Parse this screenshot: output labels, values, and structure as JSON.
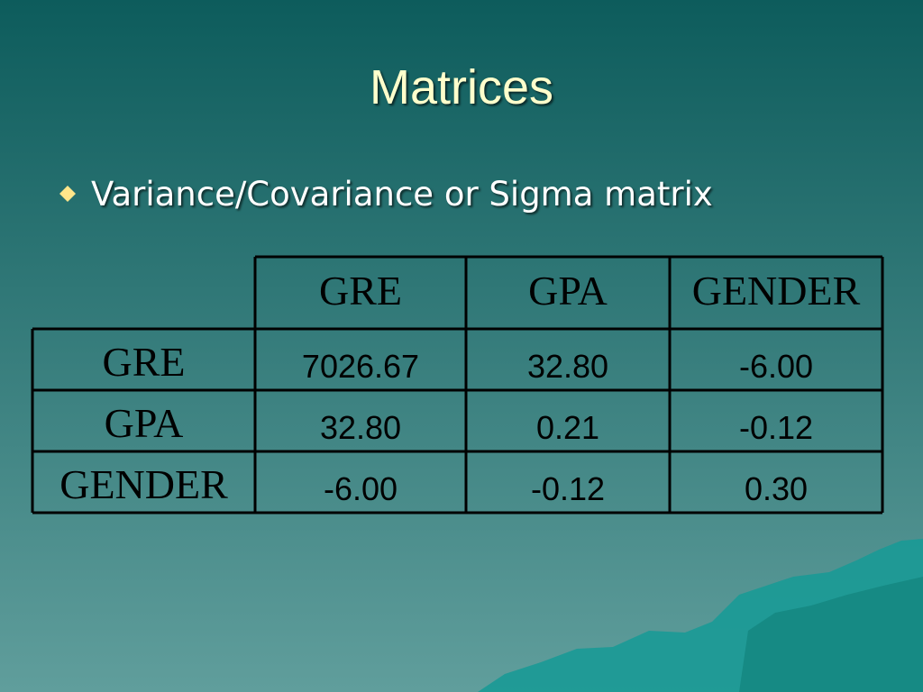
{
  "title": "Matrices",
  "bullet": "Variance/Covariance or Sigma matrix",
  "table": {
    "columns": [
      "GRE",
      "GPA",
      "GENDER"
    ],
    "rows": [
      {
        "label": "GRE",
        "cells": [
          "7026.67",
          "32.80",
          "-6.00"
        ]
      },
      {
        "label": "GPA",
        "cells": [
          "32.80",
          "0.21",
          "-0.12"
        ]
      },
      {
        "label": "GENDER",
        "cells": [
          "-6.00",
          "-0.12",
          "0.30"
        ]
      }
    ]
  }
}
